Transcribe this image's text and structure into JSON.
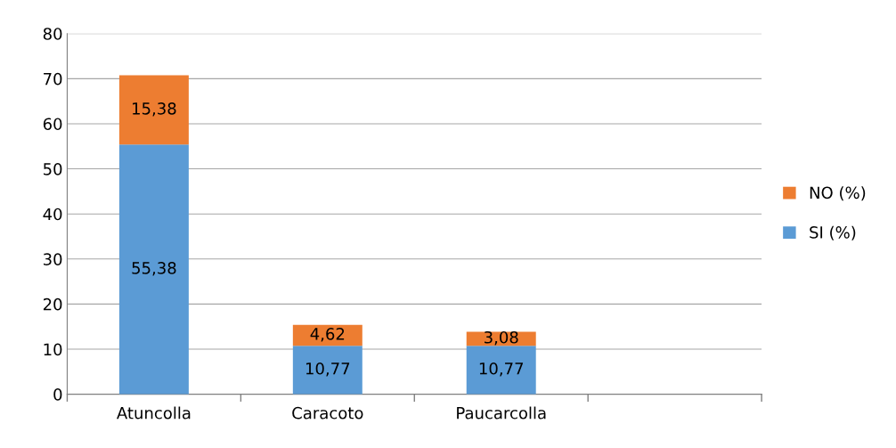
{
  "chart_data": {
    "type": "bar",
    "stacked": true,
    "categories": [
      "Atuncolla",
      "Caracoto",
      "Paucarcolla",
      null
    ],
    "series": [
      {
        "name": "SI (%)",
        "color": "#5b9bd5",
        "values": [
          55.38,
          10.77,
          10.77,
          null
        ],
        "value_labels": [
          "55,38",
          "10,77",
          "10,77",
          null
        ]
      },
      {
        "name": "NO (%)",
        "color": "#ed7d31",
        "values": [
          15.38,
          4.62,
          3.08,
          null
        ],
        "value_labels": [
          "15,38",
          "4,62",
          "3,08",
          null
        ]
      }
    ],
    "ylim": [
      0,
      80
    ],
    "yticks": [
      0,
      10,
      20,
      30,
      40,
      50,
      60,
      70,
      80
    ],
    "grid": "y",
    "legend": "right"
  }
}
